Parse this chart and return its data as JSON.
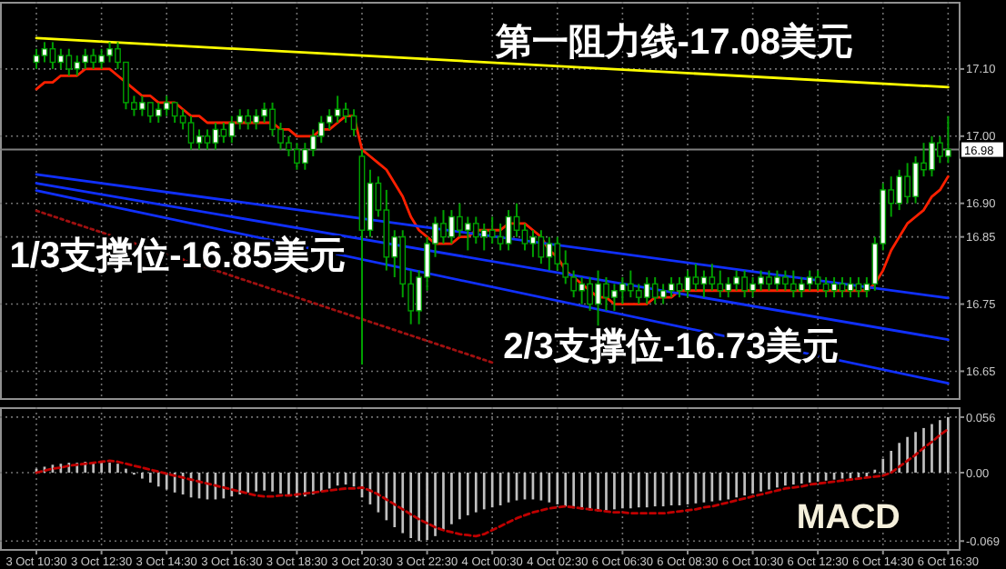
{
  "chart_data": [
    {
      "type": "candlestick",
      "tick_labels": "y",
      "grid": true,
      "categories": [
        "3 Oct 10:30",
        null,
        null,
        null,
        null,
        null,
        null,
        null,
        "3 Oct 12:30",
        null,
        null,
        null,
        null,
        null,
        null,
        null,
        "3 Oct 14:30",
        null,
        null,
        null,
        null,
        null,
        null,
        null,
        "3 Oct 16:30",
        null,
        null,
        null,
        null,
        null,
        null,
        null,
        "3 Oct 18:30",
        null,
        null,
        null,
        null,
        null,
        null,
        null,
        "3 Oct 20:30",
        null,
        null,
        null,
        null,
        null,
        null,
        null,
        "3 Oct 22:30",
        null,
        null,
        null,
        null,
        null,
        null,
        null,
        "4 Oct 00:30",
        null,
        null,
        null,
        null,
        null,
        null,
        null,
        "4 Oct 02:30",
        null,
        null,
        null,
        null,
        null,
        null,
        null,
        "6 Oct 06:30",
        null,
        null,
        null,
        null,
        null,
        null,
        null,
        "6 Oct 08:30",
        null,
        null,
        null,
        null,
        null,
        null,
        null,
        "6 Oct 10:30",
        null,
        null,
        null,
        null,
        null,
        null,
        null,
        "6 Oct 12:30",
        null,
        null,
        null,
        null,
        null,
        null,
        null,
        "6 Oct 14:30",
        null,
        null,
        null,
        null,
        null,
        null,
        null,
        "6 Oct 16:30"
      ],
      "ylim": [
        16.61,
        17.2
      ],
      "yticks": [
        {
          "value": 17.1,
          "label": "17.10"
        },
        {
          "value": 17.0,
          "label": "17.00"
        },
        {
          "value": 16.9,
          "label": "16.90"
        },
        {
          "value": 16.85,
          "label": "16.85"
        },
        {
          "value": 16.75,
          "label": "16.75"
        },
        {
          "value": 16.65,
          "label": "16.65"
        }
      ],
      "ref_lines": [
        {
          "axis": "y",
          "value": 16.98,
          "label": "16.98",
          "color": "#808080"
        }
      ],
      "annotations": [
        "第一阻力线-17.08美元",
        "1/3支撑位-16.85美元",
        "2/3支撑位-16.73美元"
      ],
      "series": [
        {
          "type": "candlestick",
          "color": "#00a000",
          "ohlc": [
            [
              17.11,
              17.13,
              17.1,
              17.12
            ],
            [
              17.12,
              17.14,
              17.11,
              17.13
            ],
            [
              17.13,
              17.14,
              17.1,
              17.11
            ],
            [
              17.11,
              17.13,
              17.1,
              17.12
            ],
            [
              17.12,
              17.13,
              17.09,
              17.1
            ],
            [
              17.1,
              17.12,
              17.09,
              17.11
            ],
            [
              17.11,
              17.13,
              17.1,
              17.12
            ],
            [
              17.12,
              17.13,
              17.1,
              17.11
            ],
            [
              17.11,
              17.13,
              17.1,
              17.12
            ],
            [
              17.12,
              17.14,
              17.11,
              17.13
            ],
            [
              17.13,
              17.14,
              17.1,
              17.11
            ],
            [
              17.11,
              17.11,
              17.04,
              17.05
            ],
            [
              17.05,
              17.06,
              17.03,
              17.04
            ],
            [
              17.04,
              17.06,
              17.03,
              17.05
            ],
            [
              17.05,
              17.05,
              17.02,
              17.03
            ],
            [
              17.03,
              17.05,
              17.02,
              17.04
            ],
            [
              17.04,
              17.06,
              17.03,
              17.05
            ],
            [
              17.05,
              17.05,
              17.02,
              17.03
            ],
            [
              17.03,
              17.04,
              17.01,
              17.02
            ],
            [
              17.02,
              17.03,
              16.98,
              16.99
            ],
            [
              16.99,
              17.01,
              16.98,
              17.0
            ],
            [
              17.0,
              17.01,
              16.98,
              16.99
            ],
            [
              16.99,
              17.02,
              16.98,
              17.01
            ],
            [
              17.01,
              17.02,
              16.99,
              17.0
            ],
            [
              17.0,
              17.03,
              16.99,
              17.02
            ],
            [
              17.02,
              17.04,
              17.01,
              17.03
            ],
            [
              17.03,
              17.04,
              17.01,
              17.02
            ],
            [
              17.02,
              17.04,
              17.01,
              17.03
            ],
            [
              17.03,
              17.05,
              17.02,
              17.04
            ],
            [
              17.04,
              17.05,
              17.0,
              17.01
            ],
            [
              17.01,
              17.02,
              16.98,
              16.99
            ],
            [
              16.99,
              17.0,
              16.97,
              16.98
            ],
            [
              16.98,
              16.99,
              16.95,
              16.96
            ],
            [
              16.96,
              16.99,
              16.95,
              16.98
            ],
            [
              16.98,
              17.01,
              16.97,
              17.0
            ],
            [
              17.0,
              17.03,
              16.99,
              17.02
            ],
            [
              17.02,
              17.04,
              17.01,
              17.03
            ],
            [
              17.03,
              17.06,
              17.02,
              17.04
            ],
            [
              17.04,
              17.05,
              17.02,
              17.03
            ],
            [
              17.03,
              17.04,
              17.0,
              17.01
            ],
            [
              16.97,
              16.98,
              16.66,
              16.86
            ],
            [
              16.86,
              16.95,
              16.85,
              16.93
            ],
            [
              16.93,
              16.94,
              16.88,
              16.89
            ],
            [
              16.89,
              16.92,
              16.8,
              16.82
            ],
            [
              16.82,
              16.86,
              16.79,
              16.85
            ],
            [
              16.85,
              16.86,
              16.76,
              16.78
            ],
            [
              16.78,
              16.8,
              16.72,
              16.74
            ],
            [
              16.74,
              16.8,
              16.72,
              16.79
            ],
            [
              16.79,
              16.85,
              16.77,
              16.84
            ],
            [
              16.84,
              16.88,
              16.82,
              16.87
            ],
            [
              16.87,
              16.89,
              16.84,
              16.85
            ],
            [
              16.85,
              16.89,
              16.84,
              16.88
            ],
            [
              16.88,
              16.9,
              16.85,
              16.86
            ],
            [
              16.86,
              16.88,
              16.83,
              16.87
            ],
            [
              16.87,
              16.88,
              16.84,
              16.85
            ],
            [
              16.85,
              16.87,
              16.83,
              16.86
            ],
            [
              16.86,
              16.88,
              16.84,
              16.85
            ],
            [
              16.85,
              16.87,
              16.83,
              16.84
            ],
            [
              16.84,
              16.89,
              16.83,
              16.88
            ],
            [
              16.88,
              16.9,
              16.85,
              16.86
            ],
            [
              16.86,
              16.87,
              16.83,
              16.84
            ],
            [
              16.84,
              16.86,
              16.82,
              16.85
            ],
            [
              16.85,
              16.86,
              16.81,
              16.82
            ],
            [
              16.82,
              16.85,
              16.8,
              16.84
            ],
            [
              16.84,
              16.85,
              16.8,
              16.81
            ],
            [
              16.81,
              16.83,
              16.78,
              16.79
            ],
            [
              16.79,
              16.8,
              16.76,
              16.77
            ],
            [
              16.77,
              16.79,
              16.75,
              16.78
            ],
            [
              16.78,
              16.79,
              16.74,
              16.75
            ],
            [
              16.75,
              16.8,
              16.71,
              16.78
            ],
            [
              16.78,
              16.79,
              16.74,
              16.76
            ],
            [
              16.76,
              16.78,
              16.74,
              16.77
            ],
            [
              16.77,
              16.79,
              16.75,
              16.78
            ],
            [
              16.78,
              16.8,
              16.76,
              16.77
            ],
            [
              16.77,
              16.78,
              16.75,
              16.76
            ],
            [
              16.76,
              16.79,
              16.75,
              16.78
            ],
            [
              16.78,
              16.79,
              16.75,
              16.76
            ],
            [
              16.76,
              16.78,
              16.75,
              16.77
            ],
            [
              16.77,
              16.79,
              16.76,
              16.78
            ],
            [
              16.78,
              16.79,
              16.76,
              16.77
            ],
            [
              16.77,
              16.8,
              16.76,
              16.79
            ],
            [
              16.79,
              16.81,
              16.77,
              16.78
            ],
            [
              16.78,
              16.8,
              16.76,
              16.79
            ],
            [
              16.79,
              16.81,
              16.77,
              16.78
            ],
            [
              16.78,
              16.8,
              16.76,
              16.77
            ],
            [
              16.77,
              16.79,
              16.76,
              16.78
            ],
            [
              16.78,
              16.8,
              16.77,
              16.79
            ],
            [
              16.79,
              16.8,
              16.76,
              16.77
            ],
            [
              16.77,
              16.79,
              16.76,
              16.78
            ],
            [
              16.78,
              16.8,
              16.77,
              16.79
            ],
            [
              16.79,
              16.8,
              16.77,
              16.78
            ],
            [
              16.78,
              16.8,
              16.77,
              16.79
            ],
            [
              16.79,
              16.8,
              16.77,
              16.78
            ],
            [
              16.78,
              16.8,
              16.76,
              16.77
            ],
            [
              16.77,
              16.79,
              16.76,
              16.78
            ],
            [
              16.78,
              16.8,
              16.77,
              16.79
            ],
            [
              16.79,
              16.8,
              16.77,
              16.78
            ],
            [
              16.78,
              16.79,
              16.76,
              16.77
            ],
            [
              16.77,
              16.79,
              16.76,
              16.78
            ],
            [
              16.78,
              16.79,
              16.76,
              16.77
            ],
            [
              16.77,
              16.79,
              16.76,
              16.78
            ],
            [
              16.78,
              16.79,
              16.76,
              16.77
            ],
            [
              16.77,
              16.79,
              16.76,
              16.78
            ],
            [
              16.78,
              16.85,
              16.77,
              16.84
            ],
            [
              16.84,
              16.93,
              16.83,
              16.92
            ],
            [
              16.92,
              16.94,
              16.88,
              16.9
            ],
            [
              16.9,
              16.95,
              16.89,
              16.94
            ],
            [
              16.94,
              16.96,
              16.9,
              16.91
            ],
            [
              16.91,
              16.97,
              16.9,
              16.96
            ],
            [
              16.96,
              16.99,
              16.94,
              16.95
            ],
            [
              16.95,
              17.0,
              16.94,
              16.99
            ],
            [
              16.99,
              17.0,
              16.96,
              16.97
            ],
            [
              16.97,
              17.03,
              16.96,
              16.98
            ]
          ]
        },
        {
          "type": "line",
          "color": "#ff2000",
          "values": [
            17.07,
            17.08,
            17.08,
            17.09,
            17.09,
            17.09,
            17.1,
            17.1,
            17.1,
            17.1,
            17.09,
            17.08,
            17.07,
            17.06,
            17.06,
            17.05,
            17.05,
            17.05,
            17.04,
            17.03,
            17.03,
            17.02,
            17.02,
            17.02,
            17.02,
            17.02,
            17.02,
            17.02,
            17.02,
            17.02,
            17.01,
            17.01,
            17.0,
            17.0,
            17.0,
            17.01,
            17.01,
            17.02,
            17.03,
            17.03,
            16.98,
            16.97,
            16.96,
            16.95,
            16.93,
            16.91,
            16.88,
            16.86,
            16.85,
            16.84,
            16.84,
            16.84,
            16.85,
            16.85,
            16.86,
            16.86,
            16.86,
            16.86,
            16.87,
            16.87,
            16.87,
            16.86,
            16.85,
            16.83,
            16.82,
            16.8,
            16.79,
            16.78,
            16.77,
            16.76,
            16.76,
            16.75,
            16.75,
            16.75,
            16.75,
            16.75,
            16.76,
            16.76,
            16.76,
            16.77,
            16.77,
            16.77,
            16.77,
            16.77,
            16.77,
            16.77,
            16.77,
            16.77,
            16.77,
            16.77,
            16.77,
            16.77,
            16.77,
            16.77,
            16.77,
            16.77,
            16.77,
            16.77,
            16.77,
            16.77,
            16.77,
            16.77,
            16.77,
            16.78,
            16.8,
            16.83,
            16.85,
            16.87,
            16.88,
            16.89,
            16.91,
            16.92,
            16.94
          ]
        },
        {
          "type": "line",
          "color": "#ffff00",
          "x": [
            "3 Oct 10:30",
            "6 Oct 16:30"
          ],
          "values": [
            17.146,
            17.073
          ]
        },
        {
          "type": "line",
          "color": "#1030ff",
          "x": [
            "3 Oct 10:30",
            "6 Oct 16:30"
          ],
          "values": [
            16.943,
            16.759
          ]
        },
        {
          "type": "line",
          "color": "#1030ff",
          "x": [
            "3 Oct 10:30",
            "6 Oct 16:30"
          ],
          "values": [
            16.93,
            16.697
          ]
        },
        {
          "type": "line",
          "color": "#1030ff",
          "x": [
            "3 Oct 10:30",
            "6 Oct 16:30"
          ],
          "values": [
            16.919,
            16.632
          ]
        },
        {
          "type": "line",
          "color": "#a01010",
          "line_style": "dotted",
          "x": [
            "3 Oct 10:30",
            "4 Oct 00:30"
          ],
          "values": [
            16.889,
            16.663
          ]
        }
      ]
    },
    {
      "type": "bar",
      "grid": true,
      "categories": [
        "3 Oct 10:30",
        null,
        null,
        null,
        null,
        null,
        null,
        null,
        "3 Oct 12:30",
        null,
        null,
        null,
        null,
        null,
        null,
        null,
        "3 Oct 14:30",
        null,
        null,
        null,
        null,
        null,
        null,
        null,
        "3 Oct 16:30",
        null,
        null,
        null,
        null,
        null,
        null,
        null,
        "3 Oct 18:30",
        null,
        null,
        null,
        null,
        null,
        null,
        null,
        "3 Oct 20:30",
        null,
        null,
        null,
        null,
        null,
        null,
        null,
        "3 Oct 22:30",
        null,
        null,
        null,
        null,
        null,
        null,
        null,
        "4 Oct 00:30",
        null,
        null,
        null,
        null,
        null,
        null,
        null,
        "4 Oct 02:30",
        null,
        null,
        null,
        null,
        null,
        null,
        null,
        "6 Oct 06:30",
        null,
        null,
        null,
        null,
        null,
        null,
        null,
        "6 Oct 08:30",
        null,
        null,
        null,
        null,
        null,
        null,
        null,
        "6 Oct 10:30",
        null,
        null,
        null,
        null,
        null,
        null,
        null,
        "6 Oct 12:30",
        null,
        null,
        null,
        null,
        null,
        null,
        null,
        "6 Oct 14:30",
        null,
        null,
        null,
        null,
        null,
        null,
        null,
        "6 Oct 16:30"
      ],
      "ylim": [
        -0.077,
        0.066
      ],
      "yticks": [
        0.056,
        {
          "value": 0,
          "label": "0.00"
        },
        -0.069
      ],
      "annotations": [
        "MACD"
      ],
      "series": [
        {
          "type": "bar",
          "color": "#c0c0c0",
          "values": [
            0.004,
            0.006,
            0.008,
            0.009,
            0.01,
            0.01,
            0.011,
            0.011,
            0.011,
            0.01,
            0.009,
            0.004,
            -0.002,
            -0.006,
            -0.01,
            -0.014,
            -0.017,
            -0.02,
            -0.022,
            -0.025,
            -0.026,
            -0.027,
            -0.027,
            -0.026,
            -0.024,
            -0.022,
            -0.02,
            -0.019,
            -0.018,
            -0.019,
            -0.021,
            -0.023,
            -0.025,
            -0.024,
            -0.022,
            -0.019,
            -0.016,
            -0.013,
            -0.012,
            -0.014,
            -0.025,
            -0.032,
            -0.04,
            -0.048,
            -0.055,
            -0.061,
            -0.066,
            -0.069,
            -0.068,
            -0.064,
            -0.058,
            -0.052,
            -0.047,
            -0.043,
            -0.04,
            -0.037,
            -0.035,
            -0.033,
            -0.03,
            -0.028,
            -0.027,
            -0.027,
            -0.028,
            -0.03,
            -0.032,
            -0.034,
            -0.036,
            -0.037,
            -0.038,
            -0.039,
            -0.038,
            -0.037,
            -0.036,
            -0.036,
            -0.035,
            -0.035,
            -0.034,
            -0.034,
            -0.033,
            -0.033,
            -0.032,
            -0.031,
            -0.03,
            -0.029,
            -0.028,
            -0.027,
            -0.025,
            -0.023,
            -0.021,
            -0.019,
            -0.017,
            -0.015,
            -0.013,
            -0.012,
            -0.011,
            -0.01,
            -0.009,
            -0.008,
            -0.007,
            -0.006,
            -0.006,
            -0.005,
            -0.005,
            0.003,
            0.014,
            0.022,
            0.03,
            0.036,
            0.041,
            0.045,
            0.049,
            0.053,
            0.056
          ]
        },
        {
          "type": "line",
          "color": "#c00000",
          "line_style": "dashed",
          "values": [
            0.0,
            0.002,
            0.004,
            0.005,
            0.007,
            0.008,
            0.009,
            0.01,
            0.011,
            0.012,
            0.011,
            0.009,
            0.007,
            0.005,
            0.003,
            0.001,
            -0.001,
            -0.003,
            -0.005,
            -0.007,
            -0.009,
            -0.011,
            -0.013,
            -0.015,
            -0.017,
            -0.019,
            -0.021,
            -0.023,
            -0.024,
            -0.024,
            -0.023,
            -0.023,
            -0.022,
            -0.021,
            -0.02,
            -0.019,
            -0.018,
            -0.017,
            -0.016,
            -0.016,
            -0.015,
            -0.018,
            -0.022,
            -0.027,
            -0.032,
            -0.037,
            -0.042,
            -0.047,
            -0.051,
            -0.055,
            -0.058,
            -0.06,
            -0.062,
            -0.063,
            -0.064,
            -0.062,
            -0.058,
            -0.054,
            -0.05,
            -0.046,
            -0.043,
            -0.04,
            -0.038,
            -0.036,
            -0.035,
            -0.034,
            -0.035,
            -0.036,
            -0.037,
            -0.038,
            -0.039,
            -0.04,
            -0.04,
            -0.041,
            -0.041,
            -0.041,
            -0.041,
            -0.041,
            -0.04,
            -0.039,
            -0.038,
            -0.037,
            -0.035,
            -0.034,
            -0.032,
            -0.03,
            -0.028,
            -0.026,
            -0.024,
            -0.022,
            -0.02,
            -0.018,
            -0.016,
            -0.015,
            -0.014,
            -0.012,
            -0.011,
            -0.01,
            -0.009,
            -0.008,
            -0.007,
            -0.006,
            -0.005,
            -0.004,
            -0.003,
            0.0,
            0.006,
            0.012,
            0.018,
            0.025,
            0.031,
            0.038,
            0.044
          ]
        }
      ]
    }
  ]
}
